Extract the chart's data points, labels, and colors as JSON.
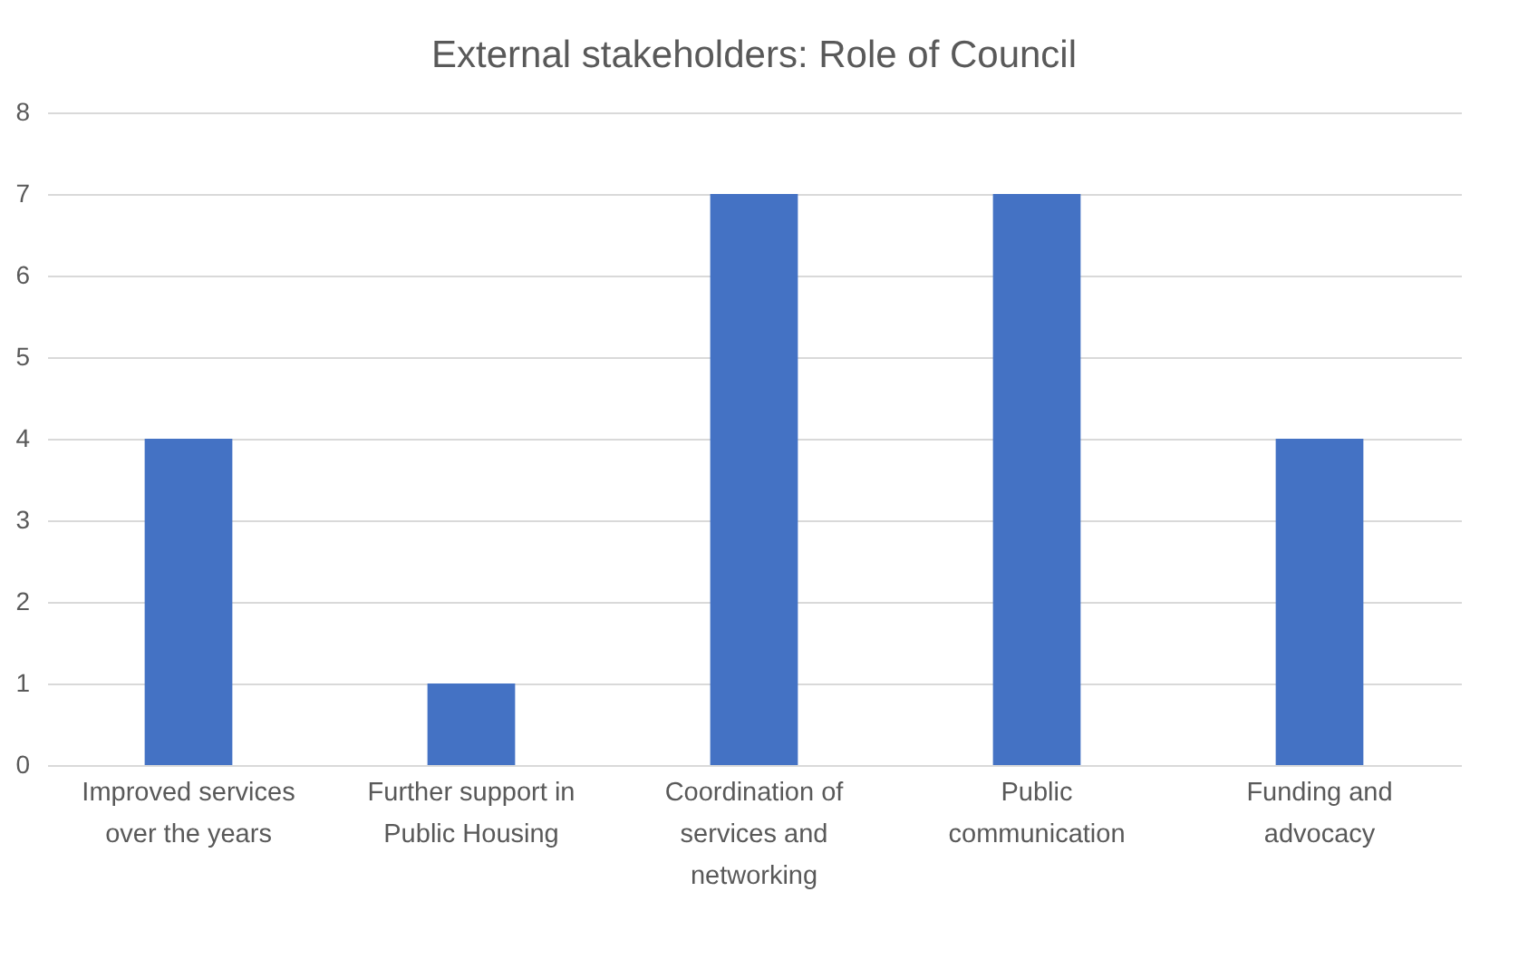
{
  "chart_data": {
    "type": "bar",
    "title": "External stakeholders: Role of Council",
    "categories": [
      "Improved services over the years",
      "Further support in Public Housing",
      "Coordination of services and networking",
      "Public communication",
      "Funding and advocacy"
    ],
    "values": [
      4,
      1,
      7,
      7,
      4
    ],
    "color": "#4472c4",
    "ylim": [
      0,
      8
    ],
    "yticks": [
      0,
      1,
      2,
      3,
      4,
      5,
      6,
      7,
      8
    ],
    "grid": "y"
  }
}
